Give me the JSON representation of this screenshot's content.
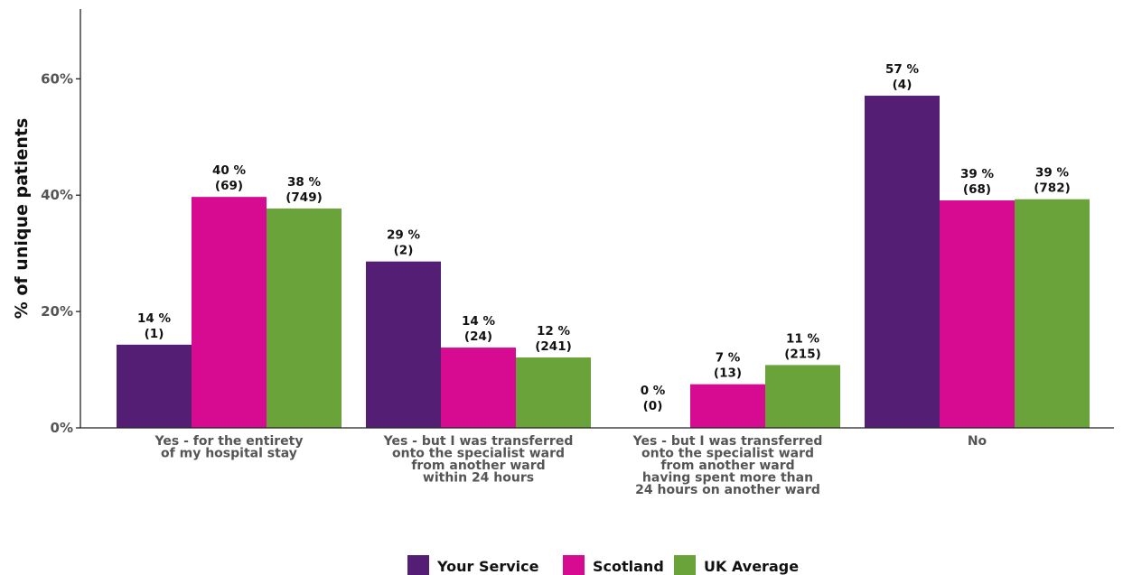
{
  "chart_data": {
    "type": "bar",
    "ylabel": "% of unique patients",
    "xlabel": "",
    "ylim": [
      0,
      72
    ],
    "yticks": [
      0,
      20,
      40,
      60
    ],
    "ytick_labels": [
      "0%",
      "20%",
      "40%",
      "60%"
    ],
    "grid": false,
    "legend_position": "bottom-center",
    "categories": [
      [
        "Yes - for the entirety",
        "of my hospital stay"
      ],
      [
        "Yes - but I was transferred",
        "onto the specialist ward",
        "from another ward",
        "within 24 hours"
      ],
      [
        "Yes - but I was transferred",
        "onto the specialist ward",
        "from another ward",
        "having spent more than",
        "24 hours on another ward"
      ],
      [
        "No"
      ]
    ],
    "series": [
      {
        "name": "Your Service",
        "color": "#531e73",
        "values": [
          14.3,
          28.6,
          0,
          57.1
        ],
        "labels": [
          [
            "14 %",
            "(1)"
          ],
          [
            "29 %",
            "(2)"
          ],
          [
            "0 %",
            "(0)"
          ],
          [
            "57 %",
            "(4)"
          ]
        ]
      },
      {
        "name": "Scotland",
        "color": "#d60b91",
        "values": [
          39.7,
          13.8,
          7.5,
          39.1
        ],
        "labels": [
          [
            "40 %",
            "(69)"
          ],
          [
            "14 %",
            "(24)"
          ],
          [
            "7 %",
            "(13)"
          ],
          [
            "39 %",
            "(68)"
          ]
        ]
      },
      {
        "name": "UK Average",
        "color": "#6aa33a",
        "values": [
          37.7,
          12.1,
          10.8,
          39.3
        ],
        "labels": [
          [
            "38 %",
            "(749)"
          ],
          [
            "12 %",
            "(241)"
          ],
          [
            "11 %",
            "(215)"
          ],
          [
            "39 %",
            "(782)"
          ]
        ]
      }
    ]
  }
}
